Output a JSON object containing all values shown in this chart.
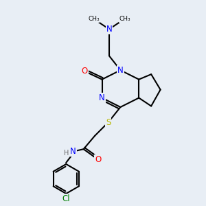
{
  "bg_color": "#e8eef5",
  "atom_colors": {
    "N": "#0000ff",
    "O": "#ff0000",
    "S": "#b8b800",
    "Cl": "#008000",
    "C": "#000000",
    "H": "#666666"
  },
  "bond_color": "#000000",
  "bond_width": 1.5,
  "figsize": [
    3.0,
    3.0
  ],
  "dpi": 100
}
